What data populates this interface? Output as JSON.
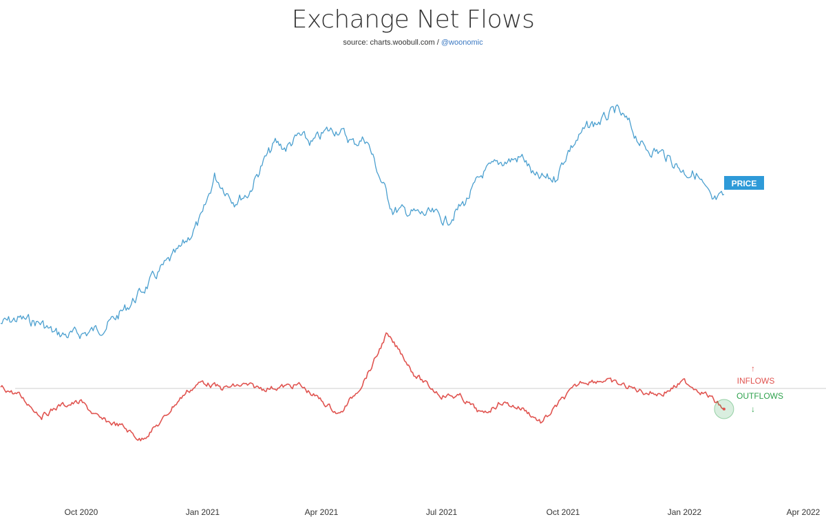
{
  "title": "Exchange Net Flows",
  "subtitle": {
    "source": "source: charts.woobull.com / ",
    "handle": "@woonomic"
  },
  "chart_data": {
    "type": "line",
    "title": "Exchange Net Flows",
    "x_range": [
      "2020-08-01",
      "2022-04-01"
    ],
    "x_ticks": [
      "Oct 2020",
      "Jan 2021",
      "Apr 2021",
      "Jul 2021",
      "Oct 2021",
      "Jan 2022",
      "Apr 2022"
    ],
    "x_tick_dates": [
      "2020-10-01",
      "2021-01-01",
      "2021-04-01",
      "2021-07-01",
      "2021-10-01",
      "2022-01-01",
      "2022-04-01"
    ],
    "grid": false,
    "zero_line": true,
    "colors": {
      "price": "#4a9fcf",
      "flows": "#e0534f",
      "outflow_marker": "#2ca14b",
      "price_label_bg": "#2e9ad8",
      "zero_line": "#cccccc"
    },
    "series": [
      {
        "name": "PRICE",
        "units": "relative",
        "x": [
          "2020-08-01",
          "2020-08-15",
          "2020-09-01",
          "2020-09-10",
          "2020-09-20",
          "2020-10-05",
          "2020-10-20",
          "2020-11-05",
          "2020-11-20",
          "2020-12-01",
          "2020-12-15",
          "2021-01-01",
          "2021-01-10",
          "2021-01-25",
          "2021-02-05",
          "2021-02-15",
          "2021-02-25",
          "2021-03-05",
          "2021-03-15",
          "2021-03-25",
          "2021-04-05",
          "2021-04-14",
          "2021-04-25",
          "2021-05-05",
          "2021-05-15",
          "2021-05-25",
          "2021-06-05",
          "2021-06-15",
          "2021-06-25",
          "2021-07-05",
          "2021-07-20",
          "2021-08-01",
          "2021-08-15",
          "2021-09-01",
          "2021-09-10",
          "2021-09-25",
          "2021-10-05",
          "2021-10-20",
          "2021-11-01",
          "2021-11-10",
          "2021-11-20",
          "2021-12-01",
          "2021-12-15",
          "2022-01-01",
          "2022-01-10",
          "2022-01-22",
          "2022-01-31"
        ],
        "values": [
          0.1,
          0.12,
          0.1,
          0.06,
          0.05,
          0.06,
          0.09,
          0.17,
          0.26,
          0.33,
          0.41,
          0.55,
          0.72,
          0.62,
          0.65,
          0.77,
          0.86,
          0.84,
          0.89,
          0.86,
          0.91,
          0.92,
          0.86,
          0.88,
          0.72,
          0.58,
          0.57,
          0.56,
          0.56,
          0.53,
          0.62,
          0.73,
          0.78,
          0.8,
          0.71,
          0.71,
          0.83,
          0.93,
          0.96,
          1.0,
          0.94,
          0.84,
          0.82,
          0.74,
          0.73,
          0.61,
          0.63
        ]
      },
      {
        "name": "INFLOWS / OUTFLOWS",
        "units": "relative",
        "x": [
          "2020-08-01",
          "2020-08-15",
          "2020-09-01",
          "2020-09-15",
          "2020-10-01",
          "2020-10-15",
          "2020-11-01",
          "2020-11-15",
          "2020-12-01",
          "2020-12-10",
          "2020-12-20",
          "2021-01-01",
          "2021-01-15",
          "2021-02-01",
          "2021-02-15",
          "2021-03-01",
          "2021-03-15",
          "2021-04-01",
          "2021-04-15",
          "2021-05-01",
          "2021-05-10",
          "2021-05-20",
          "2021-06-01",
          "2021-06-10",
          "2021-06-20",
          "2021-07-01",
          "2021-07-15",
          "2021-08-01",
          "2021-08-15",
          "2021-09-01",
          "2021-09-15",
          "2021-10-01",
          "2021-10-15",
          "2021-11-01",
          "2021-11-15",
          "2021-12-01",
          "2021-12-15",
          "2022-01-01",
          "2022-01-10",
          "2022-01-20",
          "2022-01-31"
        ],
        "values": [
          0.02,
          -0.1,
          -0.4,
          -0.25,
          -0.2,
          -0.45,
          -0.55,
          -0.75,
          -0.48,
          -0.25,
          -0.05,
          0.1,
          0.0,
          0.05,
          0.0,
          0.02,
          0.05,
          -0.18,
          -0.38,
          0.05,
          0.35,
          0.78,
          0.5,
          0.22,
          0.05,
          -0.1,
          -0.12,
          -0.38,
          -0.2,
          -0.3,
          -0.5,
          -0.15,
          0.1,
          0.12,
          0.05,
          -0.05,
          -0.08,
          0.1,
          0.0,
          -0.12,
          -0.3
        ]
      }
    ],
    "annotations": {
      "price_label": "PRICE",
      "inflows_label": "INFLOWS",
      "outflows_label": "OUTFLOWS",
      "inflows_arrow": "↑",
      "outflows_arrow": "↓"
    }
  }
}
